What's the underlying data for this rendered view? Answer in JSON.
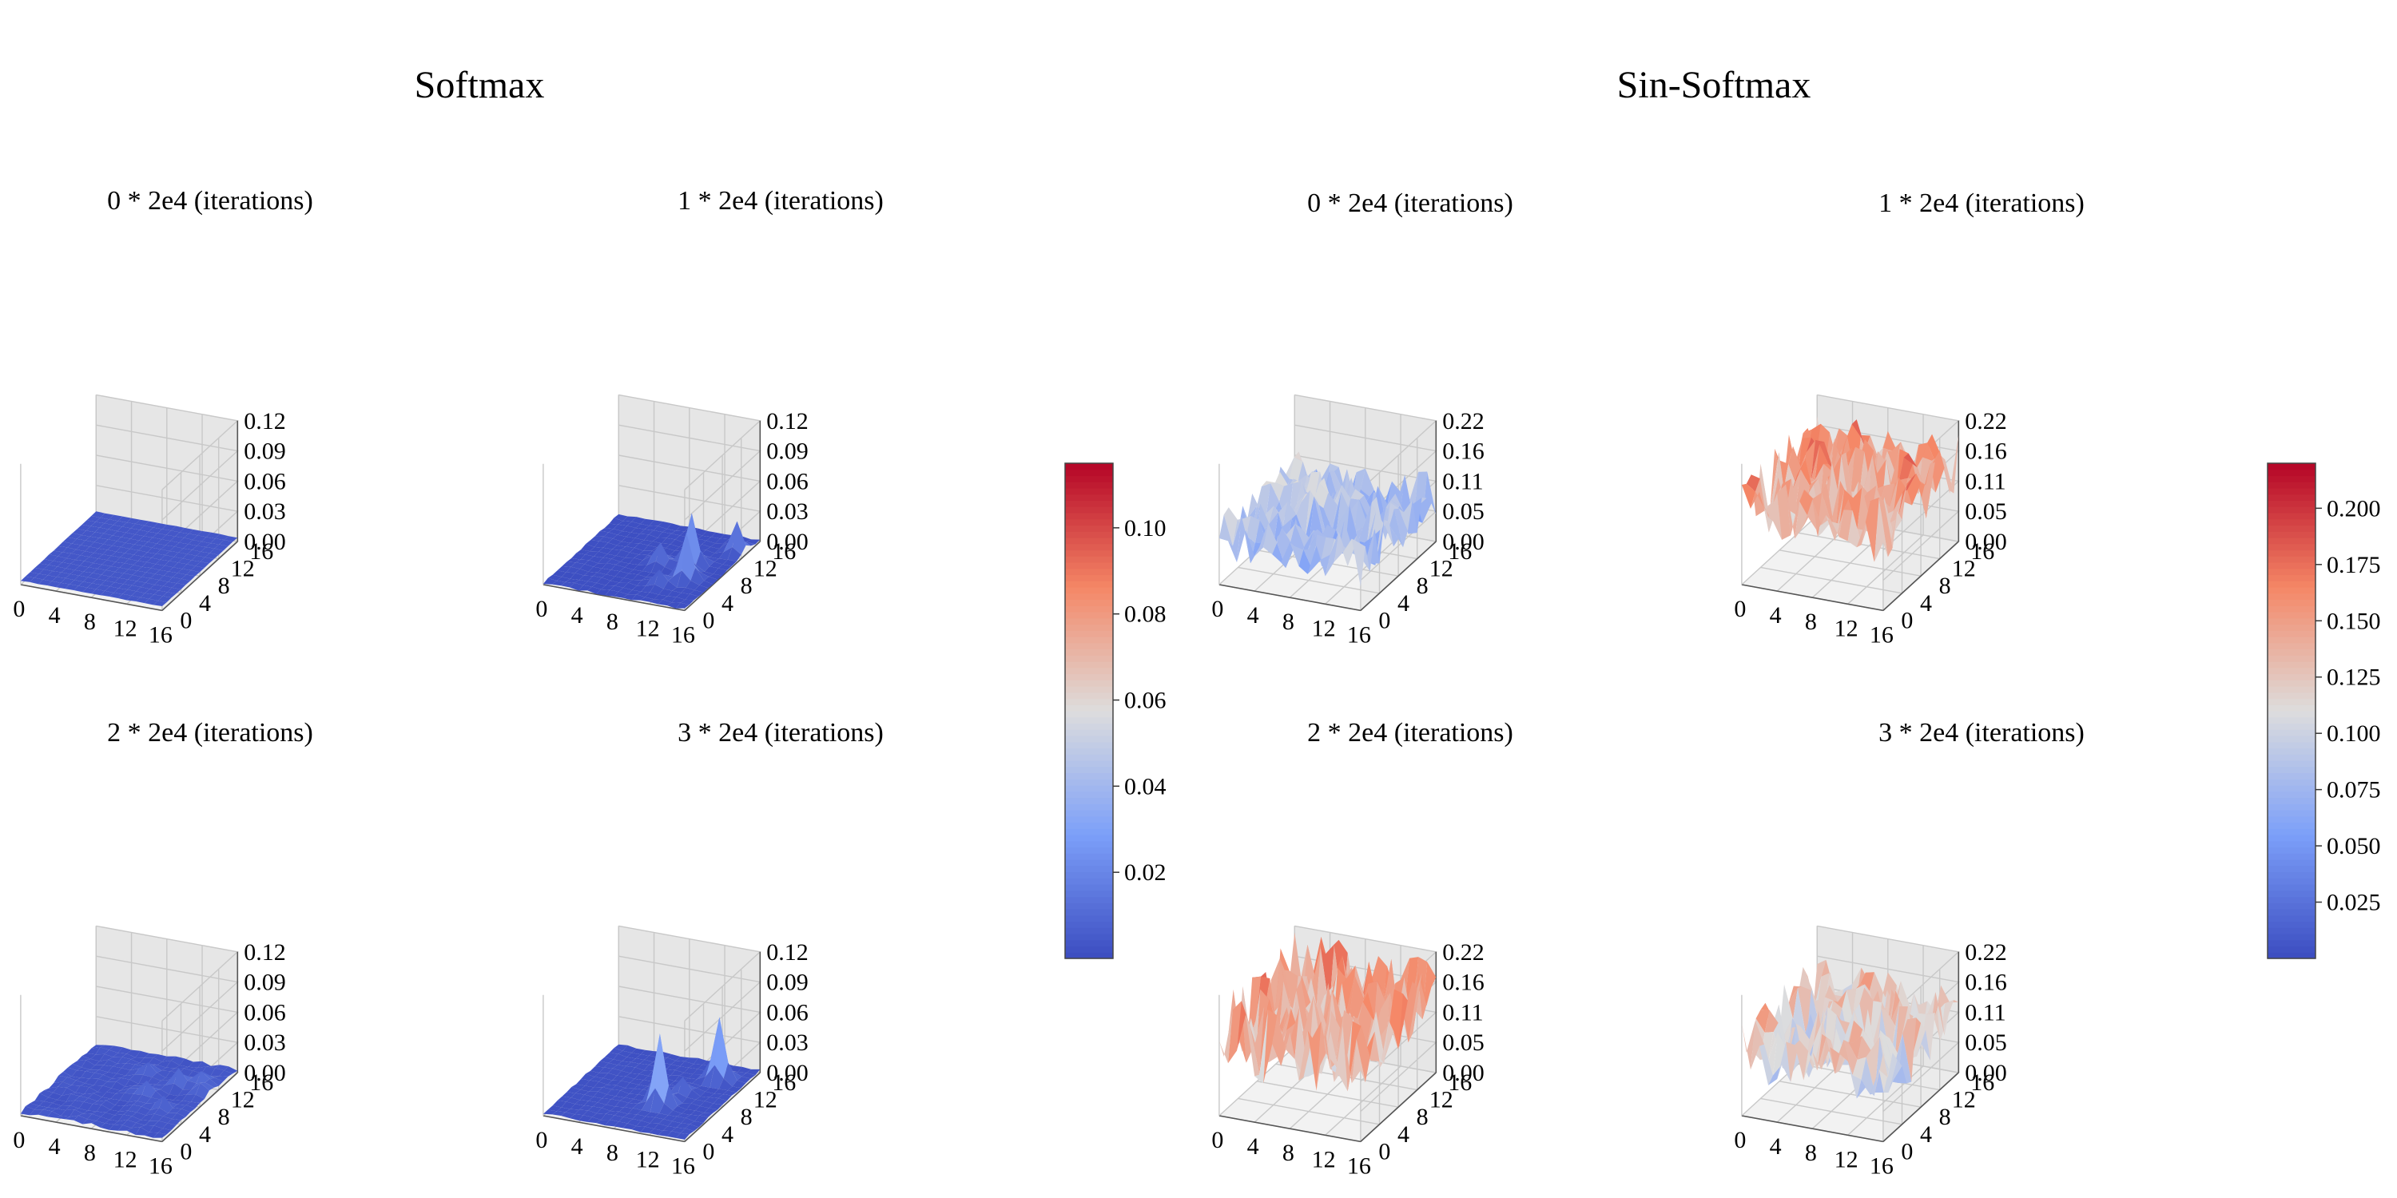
{
  "chart_data": {
    "type": "surface3d",
    "x_range": [
      0,
      16
    ],
    "y_range": [
      0,
      16
    ],
    "x_ticks": [
      "0",
      "4",
      "8",
      "12",
      "16"
    ],
    "y_ticks": [
      "0",
      "4",
      "8",
      "12",
      "16"
    ],
    "groups": [
      {
        "title": "Softmax",
        "zlim": [
          0,
          0.12
        ],
        "z_ticks": [
          "0.00",
          "0.03",
          "0.06",
          "0.09",
          "0.12"
        ],
        "colorbar": {
          "min": 0.0,
          "max": 0.115,
          "ticks": [
            0.02,
            0.04,
            0.06,
            0.08,
            0.1
          ],
          "tick_labels": [
            "0.02",
            "0.04",
            "0.06",
            "0.08",
            "0.10"
          ]
        },
        "panels": [
          {
            "title": "0 * 2e4 (iterations)",
            "surface": {
              "base": 0.0039,
              "amp": 0.0006,
              "spikes": []
            }
          },
          {
            "title": "1 * 2e4 (iterations)",
            "surface": {
              "base": 0.001,
              "amp": 0.002,
              "spikes": [
                {
                  "x": 12,
                  "y": 9,
                  "z": 0.05
                },
                {
                  "x": 13,
                  "y": 6,
                  "z": 0.045
                },
                {
                  "x": 15,
                  "y": 13,
                  "z": 0.03
                },
                {
                  "x": 9,
                  "y": 8,
                  "z": 0.02
                },
                {
                  "x": 11,
                  "y": 4,
                  "z": 0.015
                }
              ]
            }
          },
          {
            "title": "2 * 2e4 (iterations)",
            "surface": {
              "base": 0.003,
              "amp": 0.004,
              "spikes": [
                {
                  "x": 10,
                  "y": 8,
                  "z": 0.012
                },
                {
                  "x": 12,
                  "y": 11,
                  "z": 0.014
                },
                {
                  "x": 14,
                  "y": 12,
                  "z": 0.013
                },
                {
                  "x": 15,
                  "y": 10,
                  "z": 0.012
                },
                {
                  "x": 8,
                  "y": 12,
                  "z": 0.01
                },
                {
                  "x": 13,
                  "y": 6,
                  "z": 0.01
                }
              ]
            }
          },
          {
            "title": "3 * 2e4 (iterations)",
            "surface": {
              "base": 0.002,
              "amp": 0.002,
              "spikes": [
                {
                  "x": 10,
                  "y": 6,
                  "z": 0.07
                },
                {
                  "x": 13,
                  "y": 13,
                  "z": 0.06
                },
                {
                  "x": 11,
                  "y": 9,
                  "z": 0.015
                }
              ]
            }
          }
        ]
      },
      {
        "title": "Sin-Softmax",
        "zlim": [
          0,
          0.22
        ],
        "z_ticks": [
          "0.00",
          "0.05",
          "0.11",
          "0.16",
          "0.22"
        ],
        "colorbar": {
          "min": 0.0,
          "max": 0.22,
          "ticks": [
            0.025,
            0.05,
            0.075,
            0.1,
            0.125,
            0.15,
            0.175,
            0.2
          ],
          "tick_labels": [
            "0.025",
            "0.050",
            "0.075",
            "0.100",
            "0.125",
            "0.150",
            "0.175",
            "0.200"
          ]
        },
        "panels": [
          {
            "title": "0 * 2e4 (iterations)",
            "surface": {
              "base": 0.07,
              "amp": 0.09,
              "spikes": []
            }
          },
          {
            "title": "1 * 2e4 (iterations)",
            "surface": {
              "base": 0.12,
              "amp": 0.12,
              "spikes": []
            }
          },
          {
            "title": "2 * 2e4 (iterations)",
            "surface": {
              "base": 0.12,
              "amp": 0.14,
              "spikes": []
            }
          },
          {
            "title": "3 * 2e4 (iterations)",
            "surface": {
              "base": 0.1,
              "amp": 0.11,
              "spikes": []
            }
          }
        ]
      }
    ]
  }
}
